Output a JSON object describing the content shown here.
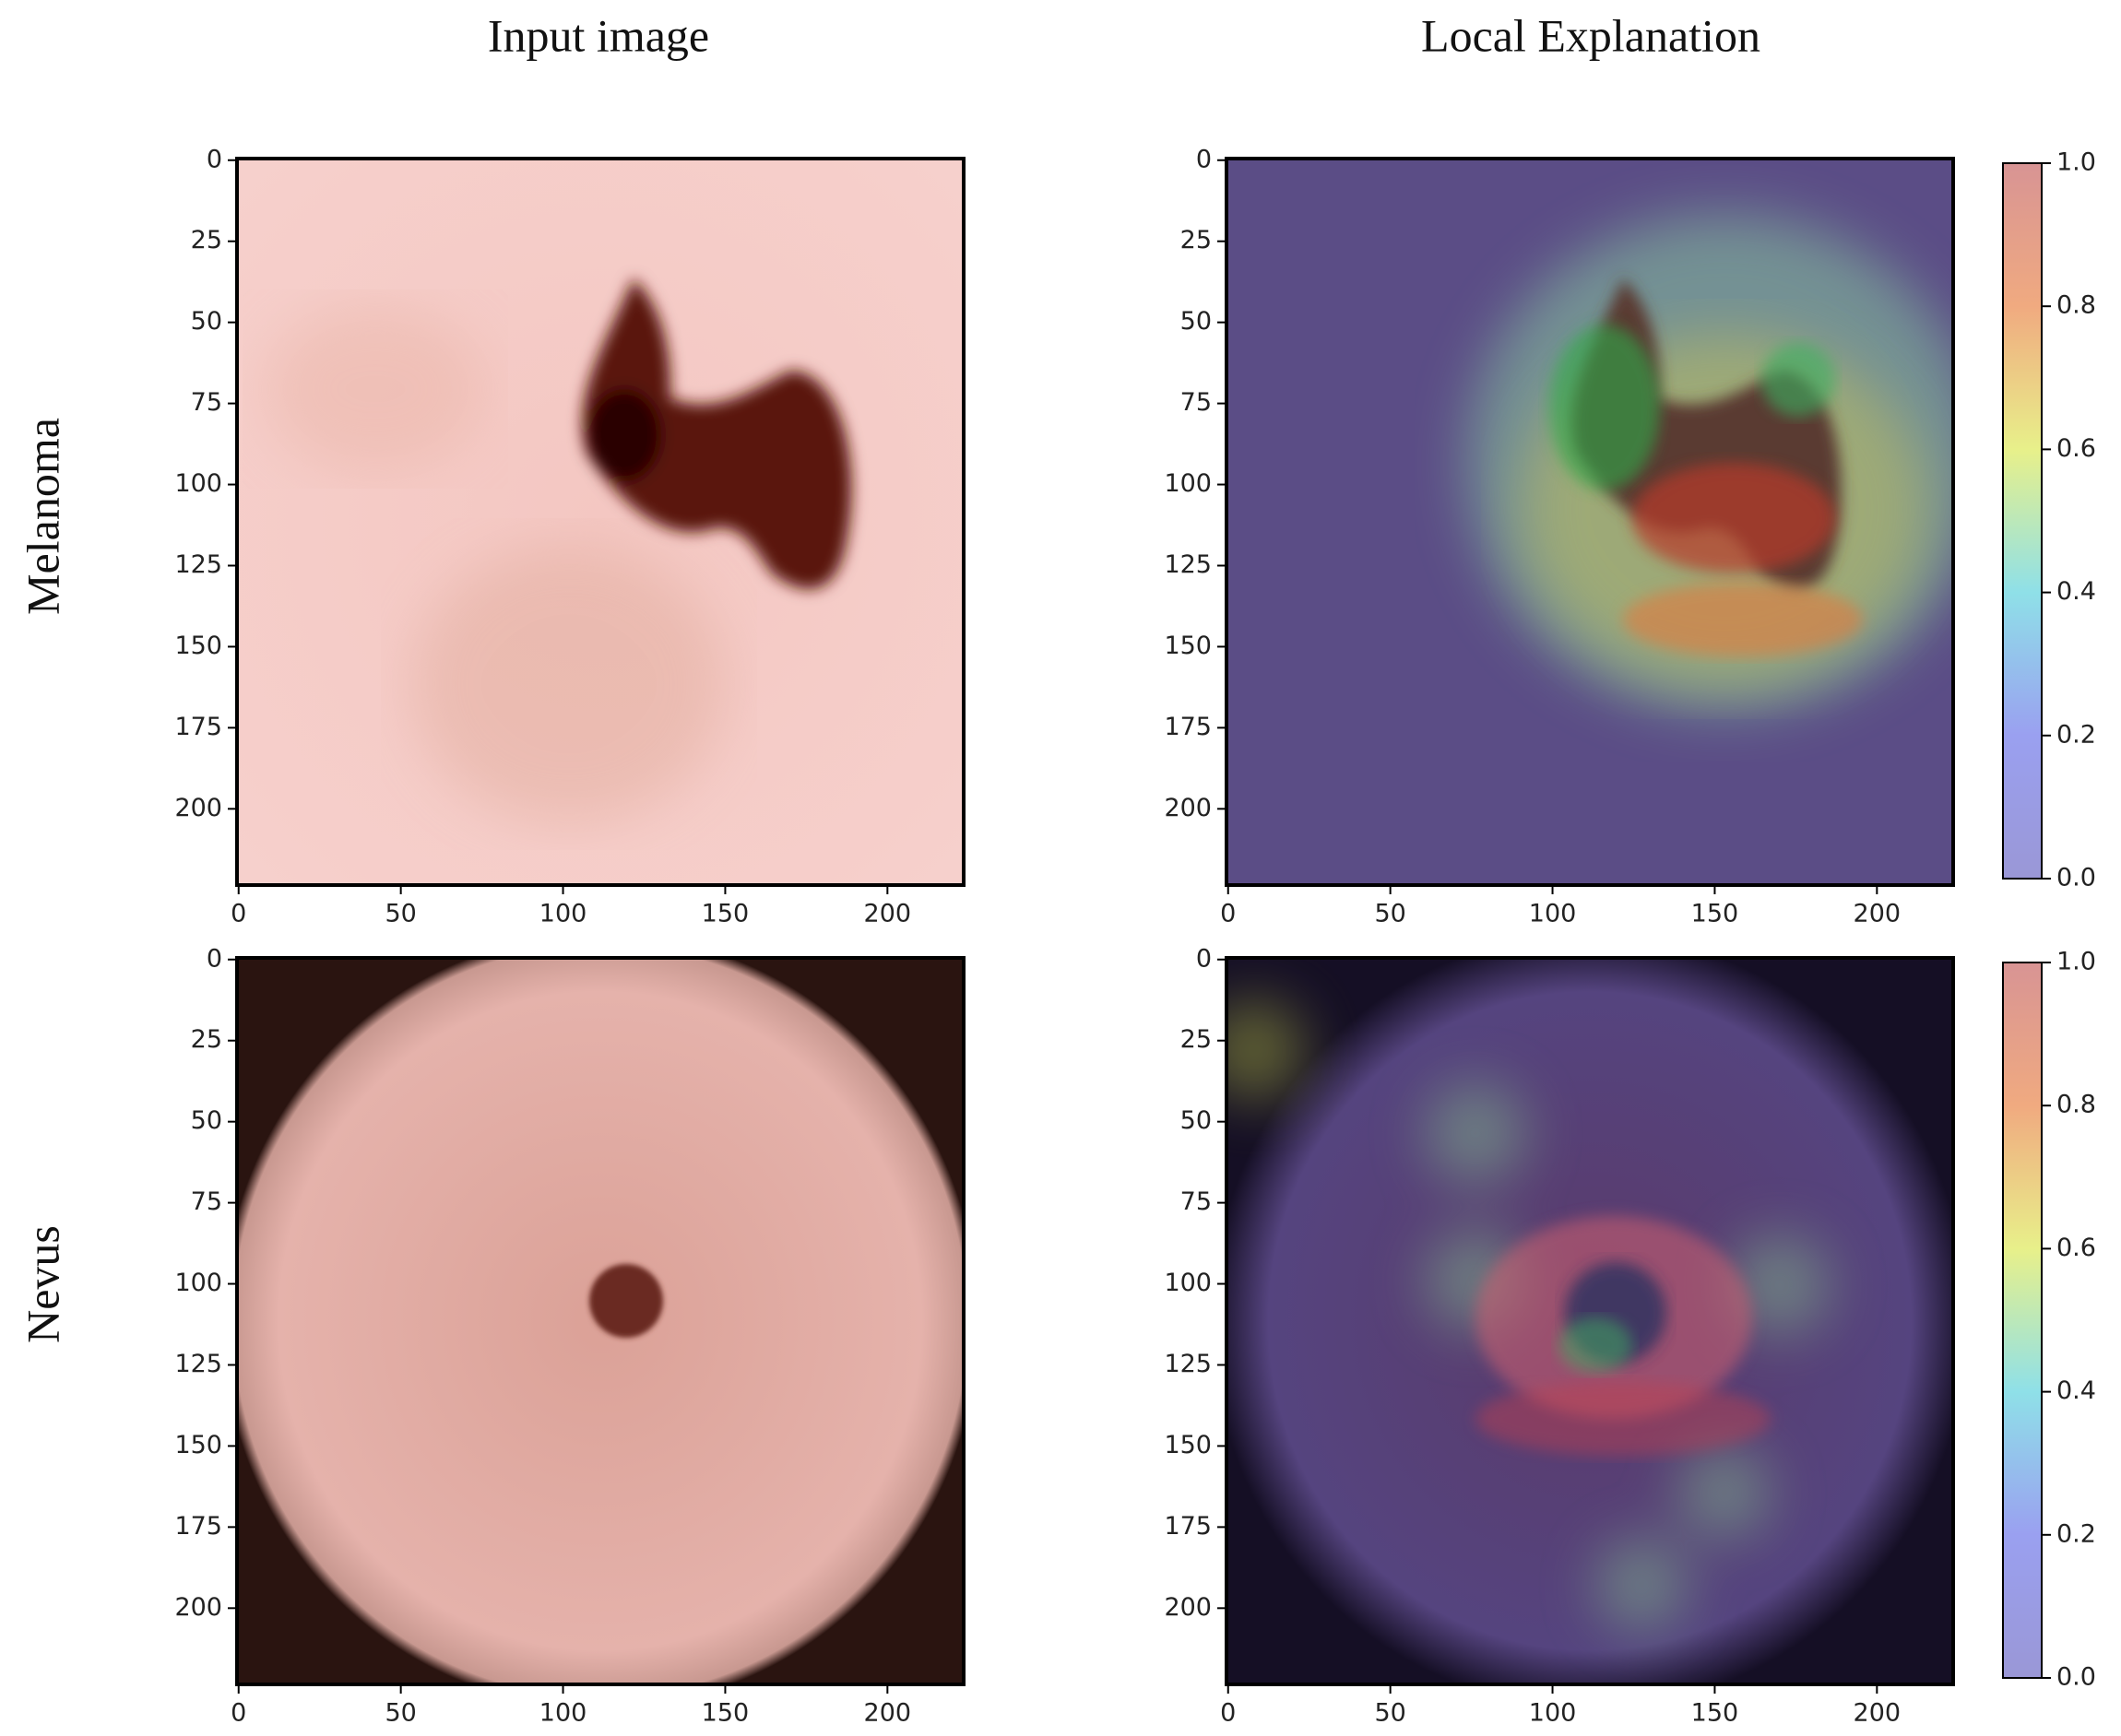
{
  "columns": [
    "Input image",
    "Local Explanation"
  ],
  "rows": [
    "Melanoma",
    "Nevus"
  ],
  "axes": {
    "xlim": [
      -0.5,
      223.5
    ],
    "ylim": [
      -0.5,
      223.5
    ],
    "xticks": [
      0,
      50,
      100,
      150,
      200
    ],
    "yticks": [
      0,
      25,
      50,
      75,
      100,
      125,
      150,
      175,
      200
    ]
  },
  "colorbar": {
    "lim": [
      0,
      1
    ],
    "ticks": [
      {
        "value": 0,
        "label": "0.0"
      },
      {
        "value": 0.2,
        "label": "0.2"
      },
      {
        "value": 0.4,
        "label": "0.4"
      },
      {
        "value": 0.6,
        "label": "0.6"
      },
      {
        "value": 0.8,
        "label": "0.8"
      },
      {
        "value": 1,
        "label": "1.0"
      }
    ]
  }
}
